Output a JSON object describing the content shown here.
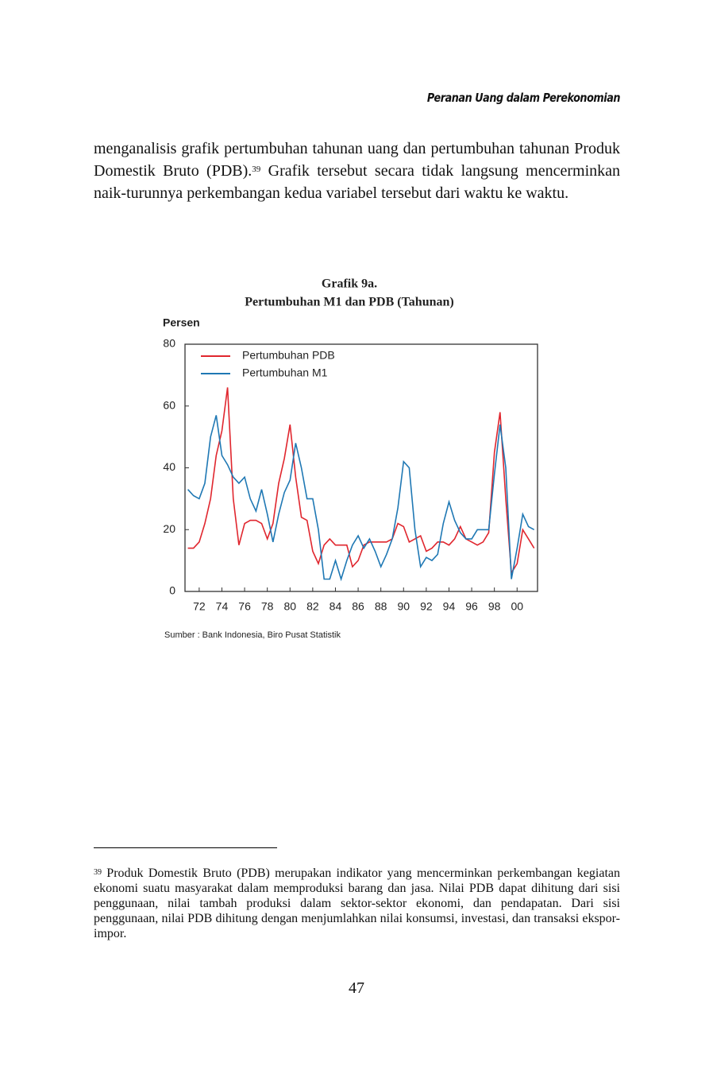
{
  "header": {
    "title": "Peranan Uang dalam Perekonomian"
  },
  "paragraph": {
    "text_before": "menganalisis grafik pertumbuhan tahunan uang dan pertumbuhan tahunan Produk Domestik Bruto (PDB).",
    "footnote_ref": "39",
    "text_after": "Grafik tersebut secara tidak langsung mencerminkan naik-turunnya perkembangan kedua variabel tersebut dari waktu ke waktu."
  },
  "chart_data": {
    "type": "line",
    "title": "Grafik 9a.",
    "subtitle": "Pertumbuhan M1 dan PDB (Tahunan)",
    "ylabel": "Persen",
    "source": "Sumber : Bank Indonesia, Biro Pusat Statistik",
    "x": [
      1971,
      1971.5,
      1972,
      1972.5,
      1973,
      1973.5,
      1974,
      1974.5,
      1975,
      1975.5,
      1976,
      1976.5,
      1977,
      1977.5,
      1978,
      1978.5,
      1979,
      1979.5,
      1980,
      1980.5,
      1981,
      1981.5,
      1982,
      1982.5,
      1983,
      1983.5,
      1984,
      1984.5,
      1985,
      1985.5,
      1986,
      1986.5,
      1987,
      1987.5,
      1988,
      1988.5,
      1989,
      1989.5,
      1990,
      1990.5,
      1991,
      1991.5,
      1992,
      1992.5,
      1993,
      1993.5,
      1994,
      1994.5,
      1995,
      1995.5,
      1996,
      1996.5,
      1997,
      1997.5,
      1998,
      1998.5,
      1999,
      1999.5,
      2000,
      2000.5,
      2001,
      2001.5
    ],
    "series": [
      {
        "name": "Pertumbuhan PDB",
        "color": "#e0262e",
        "values": [
          14,
          14,
          16,
          22,
          30,
          44,
          52,
          66,
          30,
          15,
          22,
          23,
          23,
          22,
          17,
          22,
          35,
          43,
          54,
          37,
          24,
          23,
          13,
          9,
          15,
          17,
          15,
          15,
          15,
          8,
          10,
          15,
          16,
          16,
          16,
          16,
          17,
          22,
          21,
          16,
          17,
          18,
          13,
          14,
          16,
          16,
          15,
          17,
          21,
          17,
          16,
          15,
          16,
          19,
          45,
          58,
          30,
          6,
          9,
          20,
          17,
          14
        ]
      },
      {
        "name": "Pertumbuhan M1",
        "color": "#1f78b4",
        "values": [
          33,
          31,
          30,
          35,
          50,
          57,
          44,
          41,
          37,
          35,
          37,
          30,
          26,
          33,
          25,
          16,
          25,
          32,
          36,
          48,
          40,
          30,
          30,
          20,
          4,
          4,
          10,
          4,
          10,
          15,
          18,
          14,
          17,
          13,
          8,
          12,
          17,
          27,
          42,
          40,
          20,
          8,
          11,
          10,
          12,
          22,
          29,
          23,
          19,
          17,
          17,
          20,
          20,
          20,
          38,
          54,
          40,
          4,
          14,
          25,
          21,
          20
        ]
      }
    ],
    "xlim": [
      1970.75,
      2001.8
    ],
    "xticks": [
      {
        "value": 1972,
        "label": "72"
      },
      {
        "value": 1974,
        "label": "74"
      },
      {
        "value": 1976,
        "label": "76"
      },
      {
        "value": 1978,
        "label": "78"
      },
      {
        "value": 1980,
        "label": "80"
      },
      {
        "value": 1982,
        "label": "82"
      },
      {
        "value": 1984,
        "label": "84"
      },
      {
        "value": 1986,
        "label": "86"
      },
      {
        "value": 1988,
        "label": "88"
      },
      {
        "value": 1990,
        "label": "90"
      },
      {
        "value": 1992,
        "label": "92"
      },
      {
        "value": 1994,
        "label": "94"
      },
      {
        "value": 1996,
        "label": "96"
      },
      {
        "value": 1998,
        "label": "98"
      },
      {
        "value": 2000,
        "label": "00"
      }
    ],
    "ylim": [
      0,
      80
    ],
    "yticks": [
      0,
      20,
      40,
      60,
      80
    ],
    "legend": "upper left"
  },
  "footnote": {
    "marker": "39",
    "text": "Produk Domestik Bruto (PDB) merupakan indikator yang mencerminkan perkembangan kegiatan ekonomi suatu masyarakat dalam memproduksi barang dan jasa. Nilai PDB dapat dihitung dari sisi penggunaan, nilai tambah produksi dalam sektor-sektor ekonomi, dan pendapatan. Dari sisi penggunaan, nilai PDB dihitung dengan menjumlahkan nilai konsumsi, investasi, dan transaksi ekspor-impor."
  },
  "page_number": "47"
}
